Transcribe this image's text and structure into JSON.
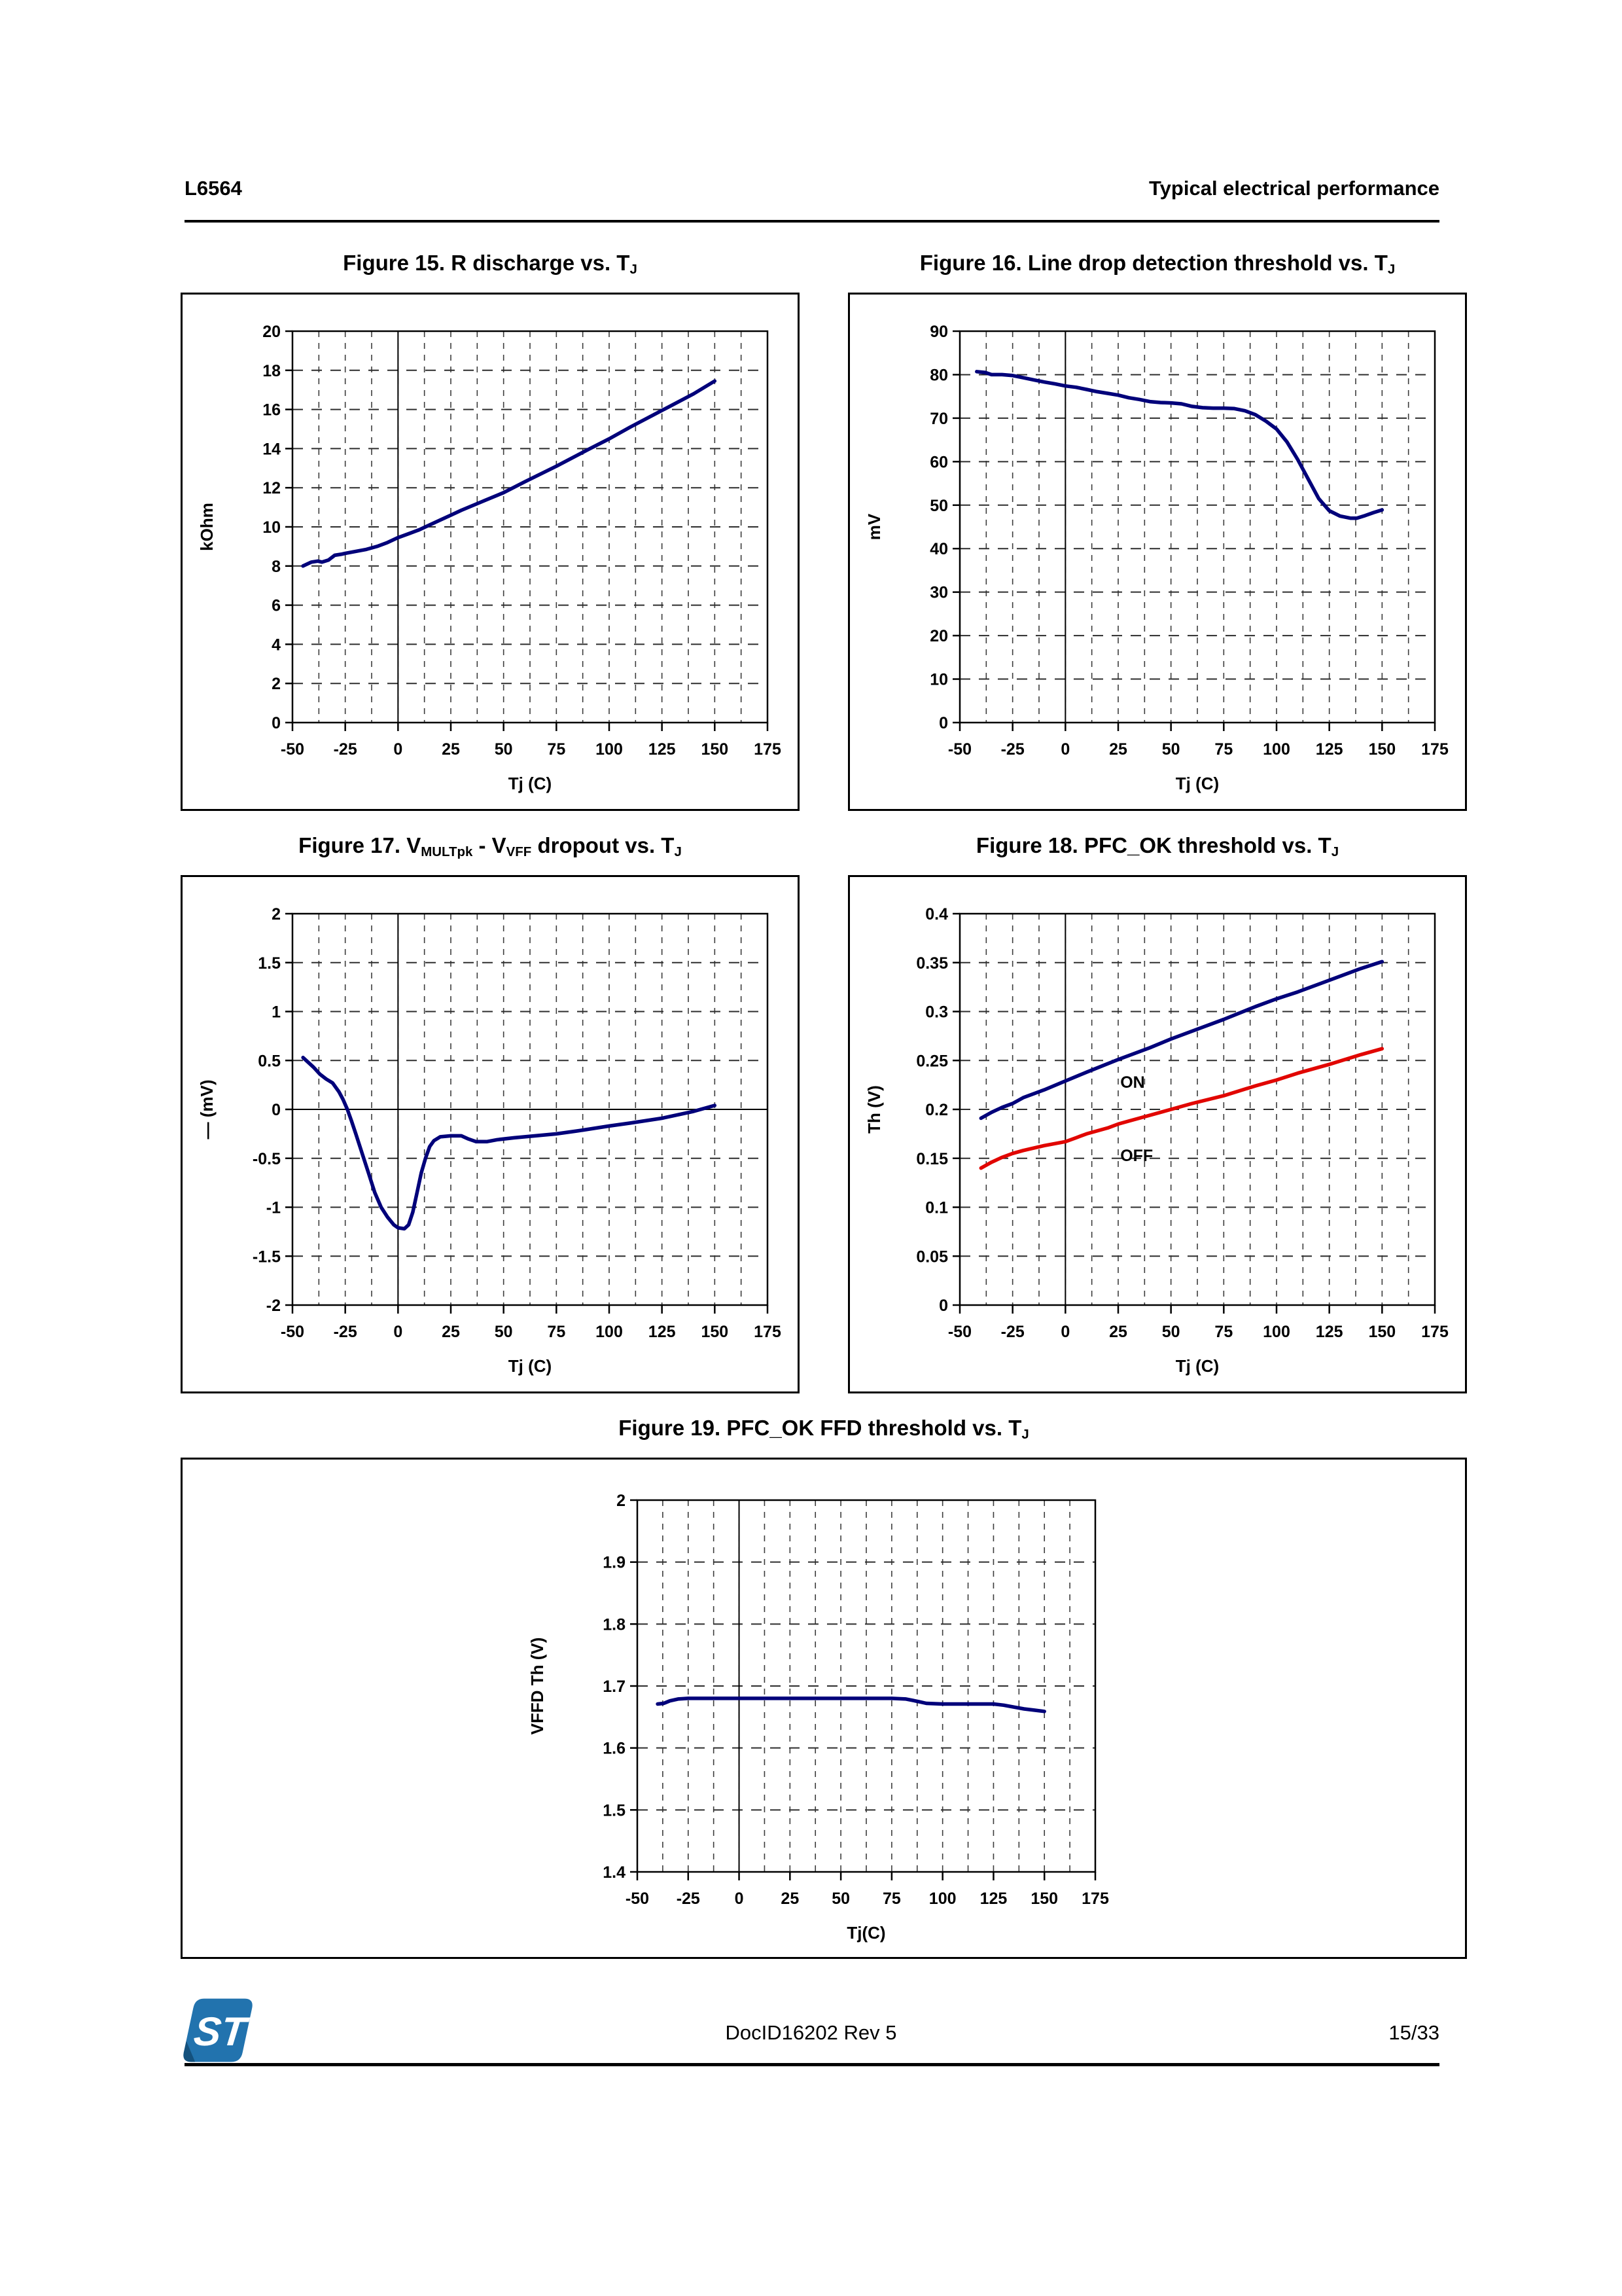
{
  "header": {
    "part_number": "L6564",
    "section_title": "Typical electrical performance"
  },
  "footer": {
    "doc_id": "DocID16202 Rev 5",
    "page_number": "15/33",
    "logo_name": "st-microelectronics-logo",
    "logo_color": "#2273ae"
  },
  "figures": [
    {
      "title_segments": [
        {
          "text": "Figure 15. R discharge vs. T"
        },
        {
          "sub": "J"
        }
      ]
    },
    {
      "title_segments": [
        {
          "text": "Figure 16. Line drop detection threshold vs. T"
        },
        {
          "sub": "J"
        }
      ]
    },
    {
      "title_segments": [
        {
          "text": "Figure 17. V"
        },
        {
          "sub": "MULTpk"
        },
        {
          "text": " - V"
        },
        {
          "sub": "VFF"
        },
        {
          "text": " dropout vs. T"
        },
        {
          "sub": "J"
        }
      ]
    },
    {
      "title_segments": [
        {
          "text": "Figure 18. PFC_OK threshold vs. T"
        },
        {
          "sub": "J"
        }
      ]
    },
    {
      "title_segments": [
        {
          "text": "Figure 19. PFC_OK FFD threshold vs. T"
        },
        {
          "sub": "J"
        }
      ]
    }
  ],
  "chart_data": [
    {
      "id": "fig15",
      "type": "line",
      "title": "R discharge vs. TJ",
      "x": {
        "min": -50,
        "max": 175,
        "tick": 25,
        "minor": 12.5,
        "label": "Tj (C)"
      },
      "y": {
        "min": 0,
        "max": 20,
        "tick": 2,
        "label": "kOhm"
      },
      "grid": "dashed",
      "legend": "none",
      "series": [
        {
          "name": "R discharge",
          "color": "#00007a",
          "points": [
            [
              -45,
              8.0
            ],
            [
              -41,
              8.2
            ],
            [
              -38,
              8.25
            ],
            [
              -36,
              8.2
            ],
            [
              -33,
              8.3
            ],
            [
              -30,
              8.55
            ],
            [
              -27,
              8.6
            ],
            [
              -25,
              8.65
            ],
            [
              -20,
              8.75
            ],
            [
              -15,
              8.85
            ],
            [
              -10,
              9.0
            ],
            [
              -5,
              9.2
            ],
            [
              0,
              9.45
            ],
            [
              5,
              9.65
            ],
            [
              10,
              9.85
            ],
            [
              15,
              10.1
            ],
            [
              20,
              10.35
            ],
            [
              25,
              10.6
            ],
            [
              30,
              10.85
            ],
            [
              40,
              11.3
            ],
            [
              50,
              11.75
            ],
            [
              60,
              12.3
            ],
            [
              75,
              13.1
            ],
            [
              90,
              13.95
            ],
            [
              100,
              14.5
            ],
            [
              110,
              15.1
            ],
            [
              125,
              15.95
            ],
            [
              140,
              16.8
            ],
            [
              150,
              17.45
            ]
          ]
        }
      ],
      "annotations": []
    },
    {
      "id": "fig16",
      "type": "line",
      "title": "Line drop detection threshold vs. TJ",
      "x": {
        "min": -50,
        "max": 175,
        "tick": 25,
        "minor": 12.5,
        "label": "Tj (C)"
      },
      "y": {
        "min": 0,
        "max": 90,
        "tick": 10,
        "label": "mV"
      },
      "grid": "dashed",
      "legend": "none",
      "series": [
        {
          "name": "Line drop detection threshold",
          "color": "#00007a",
          "points": [
            [
              -42,
              80.7
            ],
            [
              -38,
              80.5
            ],
            [
              -35,
              80.0
            ],
            [
              -30,
              80.0
            ],
            [
              -25,
              79.8
            ],
            [
              -20,
              79.3
            ],
            [
              -15,
              78.8
            ],
            [
              -10,
              78.3
            ],
            [
              -5,
              77.9
            ],
            [
              0,
              77.4
            ],
            [
              5,
              77.1
            ],
            [
              10,
              76.6
            ],
            [
              15,
              76.1
            ],
            [
              20,
              75.7
            ],
            [
              25,
              75.3
            ],
            [
              30,
              74.7
            ],
            [
              35,
              74.3
            ],
            [
              40,
              73.8
            ],
            [
              45,
              73.6
            ],
            [
              50,
              73.5
            ],
            [
              55,
              73.3
            ],
            [
              60,
              72.7
            ],
            [
              65,
              72.4
            ],
            [
              70,
              72.3
            ],
            [
              75,
              72.3
            ],
            [
              80,
              72.2
            ],
            [
              85,
              71.7
            ],
            [
              90,
              70.8
            ],
            [
              95,
              69.3
            ],
            [
              100,
              67.5
            ],
            [
              105,
              64.5
            ],
            [
              110,
              60.5
            ],
            [
              115,
              56.0
            ],
            [
              120,
              51.5
            ],
            [
              125,
              48.7
            ],
            [
              130,
              47.5
            ],
            [
              135,
              47.0
            ],
            [
              138,
              47.0
            ],
            [
              142,
              47.6
            ],
            [
              146,
              48.3
            ],
            [
              150,
              48.9
            ]
          ]
        }
      ],
      "annotations": []
    },
    {
      "id": "fig17",
      "type": "line",
      "title": "VMULTpk - VVFF dropout vs. TJ",
      "x": {
        "min": -50,
        "max": 175,
        "tick": 25,
        "minor": 12.5,
        "label": "Tj (C)"
      },
      "y": {
        "min": -2,
        "max": 2,
        "tick": 0.5,
        "label": "— (mV)"
      },
      "grid": "dashed",
      "legend": "none",
      "series": [
        {
          "name": "dropout",
          "color": "#00007a",
          "points": [
            [
              -45,
              0.53
            ],
            [
              -42,
              0.47
            ],
            [
              -40,
              0.43
            ],
            [
              -37,
              0.36
            ],
            [
              -34,
              0.31
            ],
            [
              -31,
              0.27
            ],
            [
              -28,
              0.18
            ],
            [
              -26,
              0.1
            ],
            [
              -24,
              0.0
            ],
            [
              -22,
              -0.12
            ],
            [
              -20,
              -0.25
            ],
            [
              -17,
              -0.45
            ],
            [
              -14,
              -0.65
            ],
            [
              -11,
              -0.85
            ],
            [
              -8,
              -1.0
            ],
            [
              -5,
              -1.1
            ],
            [
              -2,
              -1.18
            ],
            [
              0,
              -1.21
            ],
            [
              3,
              -1.22
            ],
            [
              5,
              -1.18
            ],
            [
              7,
              -1.05
            ],
            [
              9,
              -0.85
            ],
            [
              11,
              -0.65
            ],
            [
              13,
              -0.5
            ],
            [
              15,
              -0.38
            ],
            [
              17,
              -0.32
            ],
            [
              20,
              -0.28
            ],
            [
              25,
              -0.27
            ],
            [
              30,
              -0.27
            ],
            [
              33,
              -0.3
            ],
            [
              37,
              -0.33
            ],
            [
              42,
              -0.33
            ],
            [
              47,
              -0.31
            ],
            [
              55,
              -0.29
            ],
            [
              65,
              -0.27
            ],
            [
              75,
              -0.25
            ],
            [
              85,
              -0.22
            ],
            [
              100,
              -0.17
            ],
            [
              110,
              -0.14
            ],
            [
              125,
              -0.09
            ],
            [
              140,
              -0.02
            ],
            [
              150,
              0.04
            ]
          ]
        }
      ],
      "annotations": []
    },
    {
      "id": "fig18",
      "type": "line",
      "title": "PFC_OK threshold vs. TJ",
      "x": {
        "min": -50,
        "max": 175,
        "tick": 25,
        "minor": 12.5,
        "label": "Tj (C)"
      },
      "y": {
        "min": 0,
        "max": 0.4,
        "tick": 0.05,
        "label": "Th (V)"
      },
      "grid": "dashed",
      "legend": "inline-labels",
      "series": [
        {
          "name": "ON",
          "color": "#00007a",
          "points": [
            [
              -40,
              0.191
            ],
            [
              -35,
              0.197
            ],
            [
              -30,
              0.202
            ],
            [
              -25,
              0.206
            ],
            [
              -20,
              0.212
            ],
            [
              -10,
              0.22
            ],
            [
              0,
              0.229
            ],
            [
              10,
              0.238
            ],
            [
              25,
              0.251
            ],
            [
              40,
              0.263
            ],
            [
              50,
              0.272
            ],
            [
              65,
              0.284
            ],
            [
              75,
              0.292
            ],
            [
              90,
              0.305
            ],
            [
              100,
              0.313
            ],
            [
              110,
              0.32
            ],
            [
              125,
              0.332
            ],
            [
              140,
              0.344
            ],
            [
              150,
              0.351
            ]
          ]
        },
        {
          "name": "OFF",
          "color": "#e10600",
          "points": [
            [
              -40,
              0.14
            ],
            [
              -35,
              0.146
            ],
            [
              -30,
              0.151
            ],
            [
              -25,
              0.155
            ],
            [
              -20,
              0.158
            ],
            [
              -10,
              0.163
            ],
            [
              0,
              0.167
            ],
            [
              5,
              0.171
            ],
            [
              10,
              0.175
            ],
            [
              20,
              0.181
            ],
            [
              25,
              0.185
            ],
            [
              30,
              0.188
            ],
            [
              40,
              0.194
            ],
            [
              50,
              0.2
            ],
            [
              60,
              0.206
            ],
            [
              75,
              0.214
            ],
            [
              90,
              0.224
            ],
            [
              100,
              0.23
            ],
            [
              110,
              0.237
            ],
            [
              125,
              0.246
            ],
            [
              140,
              0.256
            ],
            [
              150,
              0.262
            ]
          ]
        }
      ],
      "annotations": [
        {
          "text": "ON",
          "x": 26,
          "y": 0.222
        },
        {
          "text": "OFF",
          "x": 26,
          "y": 0.147
        }
      ]
    },
    {
      "id": "fig19",
      "type": "line",
      "title": "PFC_OK FFD threshold vs. TJ",
      "x": {
        "min": -50,
        "max": 175,
        "tick": 25,
        "minor": 12.5,
        "label": "Tj(C)"
      },
      "y": {
        "min": 1.4,
        "max": 2,
        "tick": 0.1,
        "label": "VFFD Th (V)"
      },
      "grid": "dashed",
      "legend": "none",
      "series": [
        {
          "name": "VFFD threshold",
          "color": "#00007a",
          "points": [
            [
              -40,
              1.671
            ],
            [
              -37,
              1.672
            ],
            [
              -34,
              1.676
            ],
            [
              -30,
              1.679
            ],
            [
              -25,
              1.68
            ],
            [
              0,
              1.68
            ],
            [
              25,
              1.68
            ],
            [
              50,
              1.68
            ],
            [
              75,
              1.68
            ],
            [
              82,
              1.679
            ],
            [
              88,
              1.675
            ],
            [
              92,
              1.672
            ],
            [
              100,
              1.671
            ],
            [
              110,
              1.671
            ],
            [
              120,
              1.671
            ],
            [
              125,
              1.671
            ],
            [
              130,
              1.669
            ],
            [
              135,
              1.666
            ],
            [
              140,
              1.663
            ],
            [
              145,
              1.661
            ],
            [
              150,
              1.659
            ]
          ]
        }
      ],
      "annotations": []
    }
  ]
}
